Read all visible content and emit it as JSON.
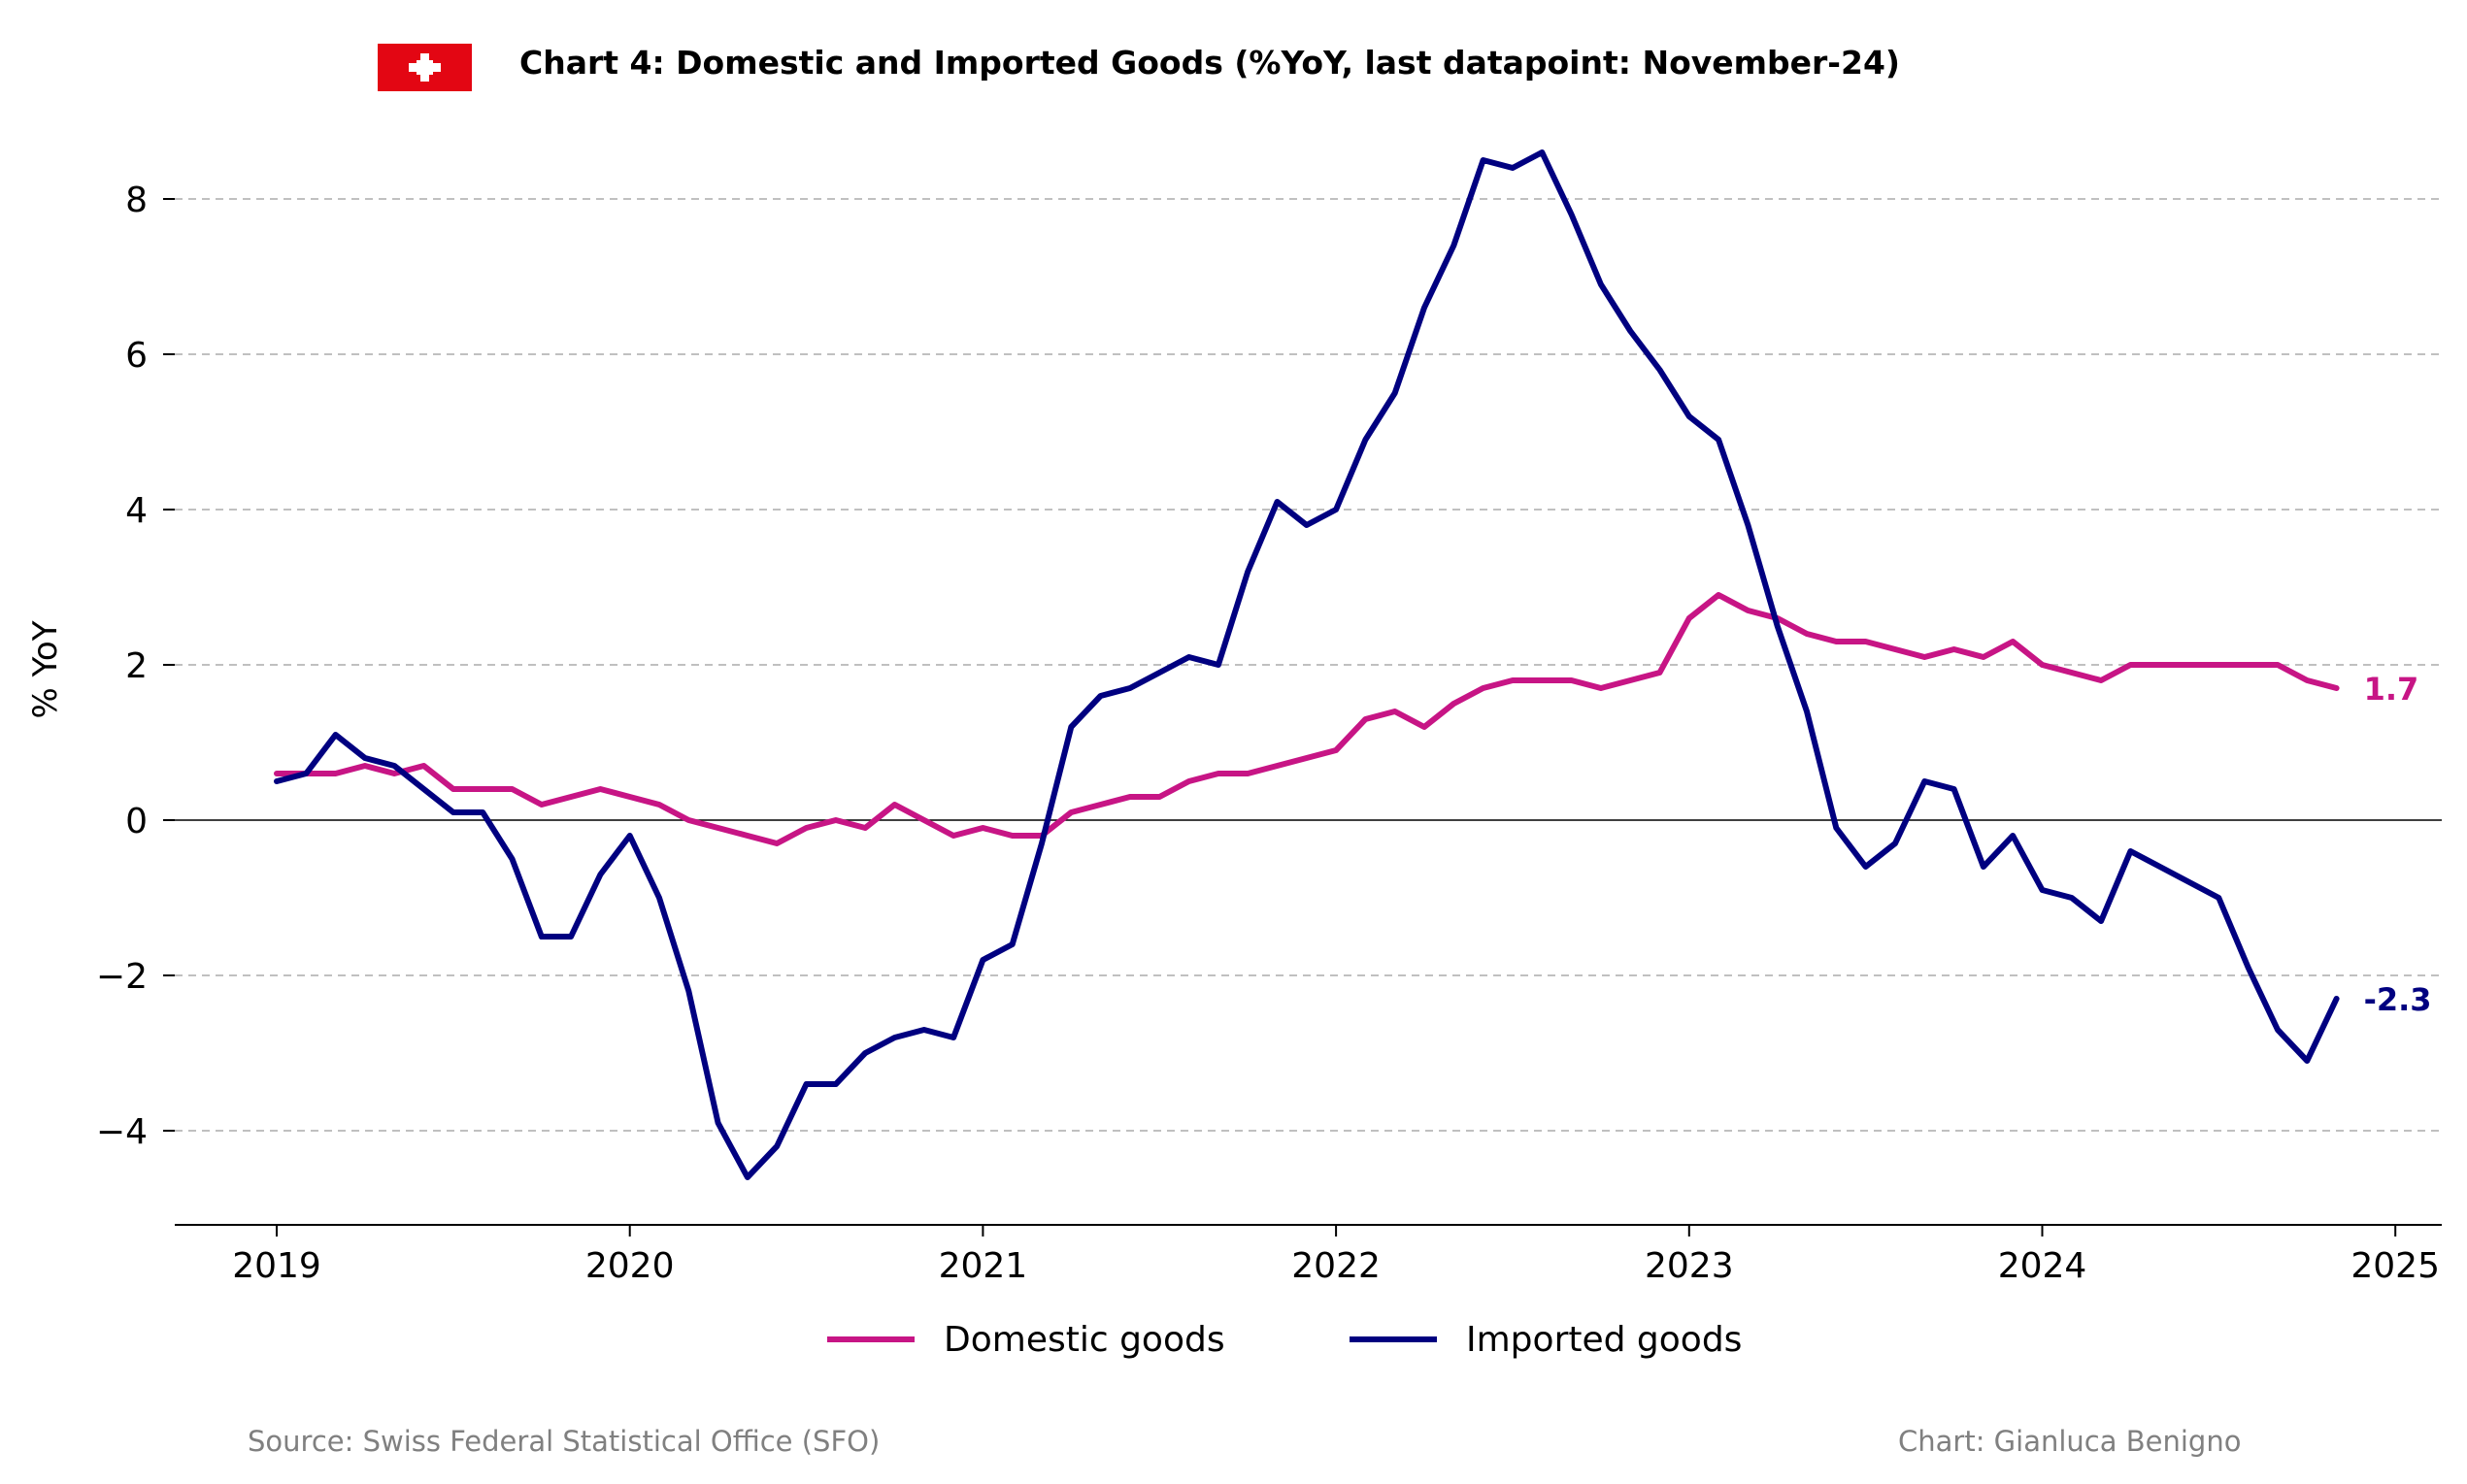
{
  "header": {
    "title": "Chart 4: Domestic and Imported Goods (%YoY, last datapoint: November-24)",
    "flag_icon": "swiss-flag-icon"
  },
  "footer": {
    "source": "Source: Swiss Federal Statistical Office (SFO)",
    "credit": "Chart: Gianluca Benigno"
  },
  "colors": {
    "domestic": "#c71585",
    "imported": "#000080",
    "flag_red": "#e30613",
    "grid": "#c0c0c0"
  },
  "chart_data": {
    "type": "line",
    "title": "Chart 4: Domestic and Imported Goods (%YoY, last datapoint: November-24)",
    "xlabel": "",
    "ylabel": "% YoY",
    "x_start": "2019-01",
    "x_end": "2024-11",
    "xlim": [
      "2018-09",
      "2025-02"
    ],
    "ylim": [
      -5.2,
      9.3
    ],
    "x_ticks": [
      "2019",
      "2020",
      "2021",
      "2022",
      "2023",
      "2024",
      "2025"
    ],
    "y_ticks": [
      -4,
      -2,
      0,
      2,
      4,
      6,
      8
    ],
    "y_tick_labels": [
      "−4",
      "−2",
      "0",
      "2",
      "4",
      "6",
      "8"
    ],
    "grid": "horizontal dashed",
    "zero_line": true,
    "legend_position": "bottom-center",
    "series": [
      {
        "name": "Domestic goods",
        "end_label": "1.7",
        "values": [
          0.6,
          0.6,
          0.6,
          0.7,
          0.6,
          0.7,
          0.4,
          0.4,
          0.4,
          0.2,
          0.3,
          0.4,
          0.3,
          0.2,
          0.0,
          -0.1,
          -0.2,
          -0.3,
          -0.1,
          0.0,
          -0.1,
          0.2,
          0.0,
          -0.2,
          -0.1,
          -0.2,
          -0.2,
          0.1,
          0.2,
          0.3,
          0.3,
          0.5,
          0.6,
          0.6,
          0.7,
          0.8,
          0.9,
          1.3,
          1.4,
          1.2,
          1.5,
          1.7,
          1.8,
          1.8,
          1.8,
          1.7,
          1.8,
          1.9,
          2.6,
          2.9,
          2.7,
          2.6,
          2.4,
          2.3,
          2.3,
          2.2,
          2.1,
          2.2,
          2.1,
          2.3,
          2.0,
          1.9,
          1.8,
          2.0,
          2.0,
          2.0,
          2.0,
          2.0,
          2.0,
          1.8,
          1.7
        ]
      },
      {
        "name": "Imported goods",
        "end_label": "-2.3",
        "values": [
          0.5,
          0.6,
          1.1,
          0.8,
          0.7,
          0.4,
          0.1,
          0.1,
          -0.5,
          -1.5,
          -1.5,
          -0.7,
          -0.2,
          -1.0,
          -2.2,
          -3.9,
          -4.6,
          -4.2,
          -3.4,
          -3.4,
          -3.0,
          -2.8,
          -2.7,
          -2.8,
          -1.8,
          -1.6,
          -0.3,
          1.2,
          1.6,
          1.7,
          1.9,
          2.1,
          2.0,
          3.2,
          4.1,
          3.8,
          4.0,
          4.9,
          5.5,
          6.6,
          7.4,
          8.5,
          8.4,
          8.6,
          7.8,
          6.9,
          6.3,
          5.8,
          5.2,
          4.9,
          3.8,
          2.5,
          1.4,
          -0.1,
          -0.6,
          -0.3,
          0.5,
          0.4,
          -0.6,
          -0.2,
          -0.9,
          -1.0,
          -1.3,
          -0.4,
          -0.6,
          -0.8,
          -1.0,
          -1.9,
          -2.7,
          -3.1,
          -2.3
        ]
      }
    ]
  }
}
